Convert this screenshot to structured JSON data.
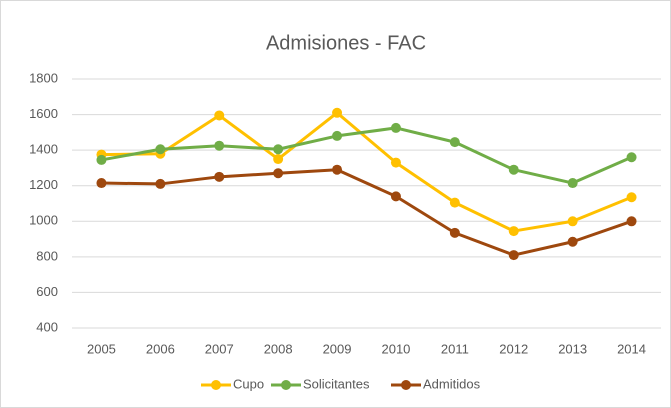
{
  "chart_data": {
    "type": "line",
    "title": "Admisiones - FAC",
    "categories": [
      "2005",
      "2006",
      "2007",
      "2008",
      "2009",
      "2010",
      "2011",
      "2012",
      "2013",
      "2014"
    ],
    "series": [
      {
        "name": "Cupo",
        "color": "#ffc000",
        "values": [
          1375,
          1380,
          1595,
          1350,
          1610,
          1330,
          1105,
          945,
          1000,
          1135
        ]
      },
      {
        "name": "Solicitantes",
        "color": "#70ad47",
        "values": [
          1345,
          1405,
          1425,
          1405,
          1480,
          1525,
          1445,
          1290,
          1215,
          1360
        ]
      },
      {
        "name": "Admitidos",
        "color": "#9e480e",
        "values": [
          1215,
          1210,
          1250,
          1270,
          1290,
          1140,
          935,
          810,
          885,
          1000
        ]
      }
    ],
    "ylim": [
      400,
      1800
    ],
    "yticks": [
      400,
      600,
      800,
      1000,
      1200,
      1400,
      1600,
      1800
    ],
    "grid": true,
    "legend": "bottom"
  }
}
